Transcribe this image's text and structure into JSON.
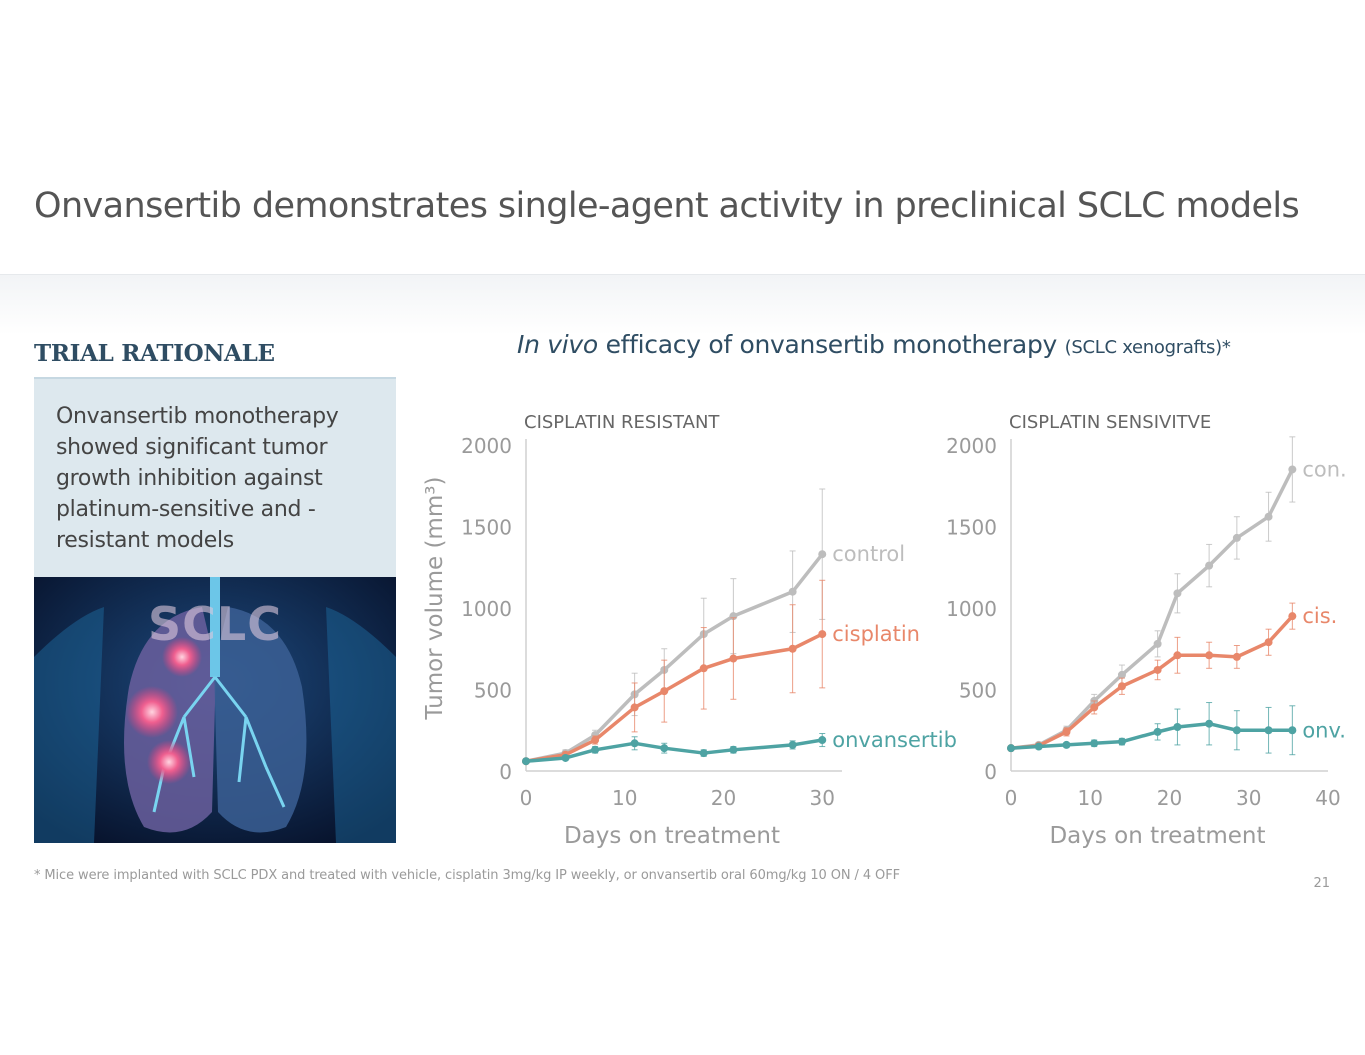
{
  "slide": {
    "title": "Onvansertib demonstrates single-agent activity in preclinical SCLC models",
    "page_number": "21",
    "footnote": "*  Mice were implanted with SCLC PDX and treated with vehicle, cisplatin 3mg/kg IP weekly, or onvansertib oral 60mg/kg 10 ON / 4 OFF"
  },
  "rationale": {
    "heading": "TRIAL RATIONALE",
    "text": "Onvansertib monotherapy showed significant tumor growth inhibition against platinum-sensitive and -resistant models",
    "image_label": "SCLC"
  },
  "chart_section": {
    "heading_italic": "In vivo",
    "heading_rest": "efficacy of onvansertib monotherapy",
    "heading_small": "(SCLC xenografts)*"
  },
  "colors": {
    "control": "#bdbdbd",
    "cisplatin": "#e8876a",
    "onvansertib": "#4ea3a3",
    "axis": "#d0d0d0",
    "tick_text": "#9a9a9a"
  },
  "chart_data": [
    {
      "type": "line",
      "panel_title": "CISPLATIN RESISTANT",
      "xlabel": "Days on treatment",
      "ylabel": "Tumor volume (mm³)",
      "xlim": [
        0,
        32
      ],
      "ylim": [
        0,
        2000
      ],
      "xticks": [
        0,
        10,
        20,
        30
      ],
      "yticks": [
        0,
        500,
        1000,
        1500,
        2000
      ],
      "series": [
        {
          "name": "control",
          "label": "control",
          "color_key": "control",
          "x": [
            0,
            4,
            7,
            11,
            14,
            18,
            21,
            27,
            30
          ],
          "y": [
            60,
            110,
            220,
            470,
            620,
            840,
            950,
            1100,
            1330
          ],
          "err": [
            0,
            20,
            30,
            130,
            130,
            220,
            230,
            250,
            400
          ]
        },
        {
          "name": "cisplatin",
          "label": "cisplatin",
          "color_key": "cisplatin",
          "x": [
            0,
            4,
            7,
            11,
            14,
            18,
            21,
            27,
            30
          ],
          "y": [
            60,
            100,
            190,
            390,
            490,
            630,
            690,
            750,
            840
          ],
          "err": [
            0,
            15,
            25,
            150,
            190,
            250,
            250,
            270,
            330
          ]
        },
        {
          "name": "onvansertib",
          "label": "onvansertib",
          "color_key": "onvansertib",
          "x": [
            0,
            4,
            7,
            11,
            14,
            18,
            21,
            27,
            30
          ],
          "y": [
            60,
            80,
            130,
            170,
            140,
            110,
            130,
            160,
            190
          ],
          "err": [
            0,
            10,
            20,
            40,
            30,
            20,
            20,
            25,
            40
          ]
        }
      ]
    },
    {
      "type": "line",
      "panel_title": "CISPLATIN SENSIVITVE",
      "xlabel": "Days on treatment",
      "ylabel": "",
      "xlim": [
        0,
        40
      ],
      "ylim": [
        0,
        2000
      ],
      "xticks": [
        0,
        10,
        20,
        30,
        40
      ],
      "yticks": [
        0,
        500,
        1000,
        1500,
        2000
      ],
      "series": [
        {
          "name": "control",
          "label": "con.",
          "color_key": "control",
          "x": [
            0,
            3.5,
            7,
            10.5,
            14,
            18.5,
            21,
            25,
            28.5,
            32.5,
            35.5
          ],
          "y": [
            140,
            160,
            250,
            430,
            590,
            780,
            1090,
            1260,
            1430,
            1560,
            1850
          ],
          "err": [
            0,
            15,
            25,
            40,
            60,
            80,
            120,
            130,
            130,
            150,
            200
          ]
        },
        {
          "name": "cisplatin",
          "label": "cis.",
          "color_key": "cisplatin",
          "x": [
            0,
            3.5,
            7,
            10.5,
            14,
            18.5,
            21,
            25,
            28.5,
            32.5,
            35.5
          ],
          "y": [
            140,
            155,
            240,
            390,
            520,
            620,
            710,
            710,
            700,
            790,
            950
          ],
          "err": [
            0,
            15,
            25,
            40,
            50,
            60,
            110,
            80,
            70,
            80,
            80
          ]
        },
        {
          "name": "onvansertib",
          "label": "onv.",
          "color_key": "onvansertib",
          "x": [
            0,
            3.5,
            7,
            10.5,
            14,
            18.5,
            21,
            25,
            28.5,
            32.5,
            35.5
          ],
          "y": [
            140,
            150,
            160,
            170,
            180,
            240,
            270,
            290,
            250,
            250,
            250
          ],
          "err": [
            0,
            15,
            15,
            20,
            20,
            50,
            110,
            130,
            120,
            140,
            150
          ]
        }
      ]
    }
  ]
}
